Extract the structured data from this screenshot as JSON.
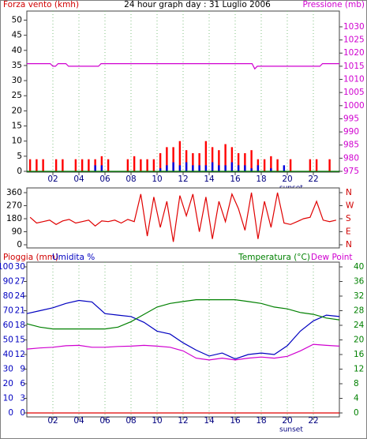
{
  "chart_data": [
    {
      "type": "combo",
      "title": "24 hour graph day : 31 Luglio 2006",
      "labels": [
        {
          "text": "Forza vento (kmh)",
          "color": "#d00000"
        },
        {
          "text": "Pressione (mb)",
          "color": "#d000d0"
        }
      ],
      "xlim": [
        0,
        24
      ],
      "xticks": [
        {
          "value": 2,
          "label": "02"
        },
        {
          "value": 4,
          "label": "04"
        },
        {
          "value": 6,
          "label": "06"
        },
        {
          "value": 8,
          "label": "08"
        },
        {
          "value": 10,
          "label": "10"
        },
        {
          "value": 12,
          "label": "12"
        },
        {
          "value": 14,
          "label": "14"
        },
        {
          "value": 16,
          "label": "16"
        },
        {
          "value": 18,
          "label": "18"
        },
        {
          "value": 20,
          "label": "20"
        },
        {
          "value": 22,
          "label": "22"
        }
      ],
      "grid": true,
      "annotations": [
        {
          "text": "sunset",
          "x": 20.3
        }
      ],
      "ylim": [
        0,
        53
      ],
      "yticks": [
        0,
        5,
        10,
        15,
        20,
        25,
        30,
        35,
        40,
        45,
        50
      ],
      "y_color": "#000000",
      "y2lim": [
        975,
        1036
      ],
      "y2ticks": [
        975,
        980,
        985,
        990,
        995,
        1000,
        1005,
        1010,
        1015,
        1020,
        1025,
        1030
      ],
      "y2_color": "#d000d0",
      "x": [
        0.25,
        0.75,
        1.25,
        1.75,
        2.25,
        2.75,
        3.25,
        3.75,
        4.25,
        4.75,
        5.25,
        5.75,
        6.25,
        6.75,
        7.25,
        7.75,
        8.25,
        8.75,
        9.25,
        9.75,
        10.25,
        10.75,
        11.25,
        11.75,
        12.25,
        12.75,
        13.25,
        13.75,
        14.25,
        14.75,
        15.25,
        15.75,
        16.25,
        16.75,
        17.25,
        17.75,
        18.25,
        18.75,
        19.25,
        19.75,
        20.25,
        20.75,
        21.25,
        21.75,
        22.25,
        22.75,
        23.25,
        23.75
      ],
      "series": [
        {
          "type": "bar",
          "color": "#ff0000",
          "values": [
            4,
            4,
            4,
            0,
            4,
            4,
            0,
            4,
            4,
            4,
            4,
            5,
            4,
            0,
            0,
            4,
            5,
            4,
            4,
            4,
            6,
            8,
            8,
            10,
            7,
            6,
            6,
            10,
            8,
            7,
            9,
            8,
            6,
            6,
            7,
            4,
            4,
            5,
            4,
            0,
            4,
            0,
            0,
            4,
            4,
            0,
            4,
            0
          ]
        },
        {
          "type": "bar",
          "color": "#0000e0",
          "values": [
            0,
            0,
            0,
            0,
            0,
            0,
            0,
            0,
            0,
            0,
            2,
            2,
            0,
            0,
            0,
            0,
            0,
            0,
            0,
            0,
            1,
            2,
            3,
            2,
            3,
            2,
            2,
            2,
            3,
            2,
            2,
            3,
            2,
            2,
            1,
            2,
            0,
            1,
            0,
            2,
            0,
            0,
            0,
            0,
            0,
            0,
            0,
            0
          ]
        },
        {
          "type": "line",
          "color": "#d000d0",
          "axis": "y2",
          "x": [
            0,
            1.8,
            2.0,
            2.2,
            2.4,
            3.0,
            3.2,
            5.5,
            5.7,
            17.3,
            17.5,
            17.7,
            22.5,
            22.7,
            24
          ],
          "values": [
            1016,
            1016,
            1015,
            1015,
            1016,
            1016,
            1015,
            1015,
            1016,
            1016,
            1014,
            1015,
            1015,
            1016,
            1016
          ]
        },
        {
          "type": "line",
          "color": "#008000",
          "x": [
            0,
            24
          ],
          "values": [
            0,
            0
          ]
        }
      ]
    },
    {
      "type": "line",
      "xlim": [
        0,
        24
      ],
      "ylim": [
        0,
        360
      ],
      "yticks": [
        0,
        90,
        180,
        270,
        360
      ],
      "y_color": "#000000",
      "y2lim": [
        0,
        360
      ],
      "y2ticks": [
        {
          "value": 0,
          "label": "N"
        },
        {
          "value": 90,
          "label": "E"
        },
        {
          "value": 180,
          "label": "S"
        },
        {
          "value": 270,
          "label": "W"
        },
        {
          "value": 360,
          "label": "N"
        }
      ],
      "y2_color": "#d00000",
      "x": [
        0.25,
        0.75,
        1.25,
        1.75,
        2.25,
        2.75,
        3.25,
        3.75,
        4.25,
        4.75,
        5.25,
        5.75,
        6.25,
        6.75,
        7.25,
        7.75,
        8.25,
        8.75,
        9.25,
        9.75,
        10.25,
        10.75,
        11.25,
        11.75,
        12.25,
        12.75,
        13.25,
        13.75,
        14.25,
        14.75,
        15.25,
        15.75,
        16.25,
        16.75,
        17.25,
        17.75,
        18.25,
        18.75,
        19.25,
        19.75,
        20.25,
        20.75,
        21.25,
        21.75,
        22.25,
        22.75,
        23.25,
        23.75
      ],
      "series": [
        {
          "type": "line",
          "color": "#e00000",
          "values": [
            190,
            150,
            160,
            170,
            140,
            165,
            175,
            150,
            160,
            170,
            130,
            165,
            160,
            170,
            150,
            175,
            160,
            350,
            60,
            330,
            120,
            300,
            20,
            340,
            200,
            350,
            90,
            330,
            40,
            300,
            160,
            350,
            250,
            100,
            360,
            40,
            300,
            120,
            360,
            150,
            140,
            160,
            180,
            190,
            300,
            170,
            160,
            170
          ]
        }
      ]
    },
    {
      "type": "line",
      "labels": [
        {
          "text": "Pioggia (mm)",
          "color": "#d00000"
        },
        {
          "text": "Umidita %",
          "color": "#0000c0"
        },
        {
          "text": "Temperatura (°C)",
          "color": "#008000"
        },
        {
          "text": "Dew Point",
          "color": "#d000d0"
        }
      ],
      "xlim": [
        0,
        24
      ],
      "xticks": [
        {
          "value": 2,
          "label": "02"
        },
        {
          "value": 4,
          "label": "04"
        },
        {
          "value": 6,
          "label": "06"
        },
        {
          "value": 8,
          "label": "08"
        },
        {
          "value": 10,
          "label": "10"
        },
        {
          "value": 12,
          "label": "12"
        },
        {
          "value": 14,
          "label": "14"
        },
        {
          "value": 16,
          "label": "16"
        },
        {
          "value": 18,
          "label": "18"
        },
        {
          "value": 20,
          "label": "20"
        },
        {
          "value": 22,
          "label": "22"
        }
      ],
      "grid": true,
      "annotations": [
        {
          "text": "sunset",
          "x": 20.3
        }
      ],
      "ylim": [
        0,
        100
      ],
      "yticks": [
        0,
        10,
        20,
        30,
        40,
        50,
        60,
        70,
        80,
        90,
        100
      ],
      "y_color": "#0000c0",
      "y3lim": [
        0,
        30
      ],
      "y3ticks": [
        0,
        3,
        6,
        9,
        12,
        15,
        18,
        21,
        24,
        27,
        30
      ],
      "y3_color": "#0000c0",
      "y2lim": [
        0,
        40
      ],
      "y2ticks": [
        0,
        4,
        8,
        12,
        16,
        20,
        24,
        28,
        32,
        36,
        40
      ],
      "y2_color": "#008000",
      "x": [
        0,
        1,
        2,
        3,
        4,
        5,
        6,
        7,
        8,
        9,
        10,
        11,
        12,
        13,
        14,
        15,
        16,
        17,
        18,
        19,
        20,
        21,
        22,
        23,
        24
      ],
      "series": [
        {
          "type": "line",
          "color": "#0000c0",
          "values": [
            68,
            70,
            72,
            75,
            77,
            76,
            68,
            67,
            66,
            62,
            56,
            54,
            48,
            43,
            39,
            41,
            37,
            40,
            41,
            40,
            46,
            56,
            63,
            67,
            66
          ]
        },
        {
          "type": "line",
          "color": "#008000",
          "axis": "y2",
          "values": [
            24.4,
            23.5,
            23,
            23,
            23,
            23,
            23,
            23.5,
            25,
            27,
            29,
            30,
            30.5,
            31,
            31,
            31,
            31,
            30.5,
            30,
            29,
            28.5,
            27.5,
            27,
            26,
            25.5
          ]
        },
        {
          "type": "line",
          "color": "#d000d0",
          "axis": "y2",
          "values": [
            17.5,
            17.8,
            18,
            18.4,
            18.5,
            18,
            18,
            18.2,
            18.3,
            18.5,
            18.3,
            18,
            17,
            15,
            14.5,
            15,
            14.5,
            15,
            15.3,
            15,
            15.5,
            17,
            18.8,
            18.5,
            18.3
          ]
        },
        {
          "type": "line",
          "color": "#e00000",
          "axis": "y3",
          "x": [
            0,
            24
          ],
          "values": [
            0,
            0
          ]
        }
      ]
    }
  ]
}
